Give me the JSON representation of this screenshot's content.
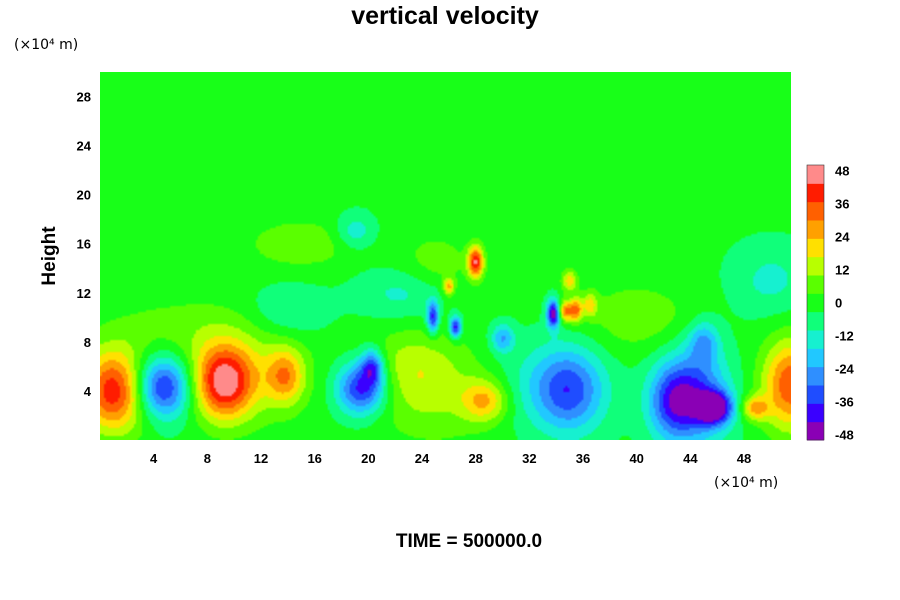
{
  "chart_data": {
    "type": "heatmap",
    "title": "vertical velocity",
    "xlabel": "",
    "ylabel": "Height",
    "x_unit": "(×10⁴ m)",
    "y_unit": "(×10⁴ m)",
    "xlim": [
      0,
      51.5
    ],
    "ylim": [
      0,
      30
    ],
    "x_ticks": [
      4,
      8,
      12,
      16,
      20,
      24,
      28,
      32,
      36,
      40,
      44,
      48
    ],
    "y_ticks": [
      4,
      8,
      12,
      16,
      20,
      24,
      28
    ],
    "colorbar": {
      "ticks": [
        48,
        36,
        24,
        12,
        0,
        -12,
        -24,
        -36,
        -48
      ],
      "range": [
        -50,
        50
      ],
      "colors": [
        "#8a00b5",
        "#3a00ff",
        "#1f4dff",
        "#2f8fff",
        "#21c8ff",
        "#16f0d0",
        "#10ff7a",
        "#18ff18",
        "#5aff00",
        "#b8ff00",
        "#ffe000",
        "#ffa000",
        "#ff6000",
        "#ff1c00",
        "#ff8a8a"
      ]
    },
    "background_value": -2,
    "features": [
      {
        "x": 1.2,
        "y": 4.0,
        "sx": 1.8,
        "sy": 2.3,
        "value": 46
      },
      {
        "x": 4.5,
        "y": 4.3,
        "sx": 1.6,
        "sy": 1.8,
        "value": -42
      },
      {
        "x": 9.2,
        "y": 4.7,
        "sx": 1.6,
        "sy": 2.1,
        "value": 46
      },
      {
        "x": 13.8,
        "y": 5.2,
        "sx": 1.0,
        "sy": 1.6,
        "value": 26
      },
      {
        "x": 11.5,
        "y": 5.5,
        "sx": 3.0,
        "sy": 3.0,
        "value": 10
      },
      {
        "x": 19.5,
        "y": 4.2,
        "sx": 1.3,
        "sy": 1.5,
        "value": -40
      },
      {
        "x": 20.3,
        "y": 6.0,
        "sx": 0.6,
        "sy": 1.0,
        "value": -30
      },
      {
        "x": 25.0,
        "y": 4.2,
        "sx": 3.5,
        "sy": 3.0,
        "value": 14
      },
      {
        "x": 28.7,
        "y": 3.2,
        "sx": 1.2,
        "sy": 1.2,
        "value": 24
      },
      {
        "x": 23.0,
        "y": 6.2,
        "sx": 2.0,
        "sy": 2.0,
        "value": 8
      },
      {
        "x": 35.0,
        "y": 4.0,
        "sx": 1.8,
        "sy": 2.4,
        "value": -28
      },
      {
        "x": 32.5,
        "y": 4.5,
        "sx": 3.0,
        "sy": 2.5,
        "value": -10
      },
      {
        "x": 44.2,
        "y": 3.5,
        "sx": 1.8,
        "sy": 2.6,
        "value": -36
      },
      {
        "x": 45.8,
        "y": 2.6,
        "sx": 0.9,
        "sy": 0.9,
        "value": -44
      },
      {
        "x": 42.5,
        "y": 3.0,
        "sx": 1.2,
        "sy": 2.0,
        "value": -20
      },
      {
        "x": 45.0,
        "y": 8.0,
        "sx": 0.8,
        "sy": 1.2,
        "value": -20
      },
      {
        "x": 48.8,
        "y": 2.6,
        "sx": 0.7,
        "sy": 0.7,
        "value": 26
      },
      {
        "x": 51.5,
        "y": 4.5,
        "sx": 1.5,
        "sy": 2.6,
        "value": 38
      },
      {
        "x": 28.0,
        "y": 14.5,
        "sx": 0.4,
        "sy": 0.9,
        "value": 44
      },
      {
        "x": 25.0,
        "y": 14.0,
        "sx": 2.0,
        "sy": 2.0,
        "value": 10
      },
      {
        "x": 33.8,
        "y": 10.3,
        "sx": 0.35,
        "sy": 0.8,
        "value": -48
      },
      {
        "x": 34.7,
        "y": 10.5,
        "sx": 0.4,
        "sy": 0.6,
        "value": 34
      },
      {
        "x": 35.5,
        "y": 10.6,
        "sx": 0.3,
        "sy": 0.7,
        "value": 30
      },
      {
        "x": 36.5,
        "y": 11.0,
        "sx": 0.4,
        "sy": 0.7,
        "value": 20
      },
      {
        "x": 35.0,
        "y": 13.0,
        "sx": 0.4,
        "sy": 0.6,
        "value": 22
      },
      {
        "x": 24.8,
        "y": 10.0,
        "sx": 0.3,
        "sy": 0.9,
        "value": -36
      },
      {
        "x": 26.5,
        "y": 9.2,
        "sx": 0.3,
        "sy": 0.6,
        "value": -40
      },
      {
        "x": 30.0,
        "y": 8.3,
        "sx": 0.6,
        "sy": 0.8,
        "value": -22
      },
      {
        "x": 26.0,
        "y": 12.5,
        "sx": 0.3,
        "sy": 0.5,
        "value": 26
      },
      {
        "x": 23.0,
        "y": 12.0,
        "sx": 2.5,
        "sy": 1.5,
        "value": -12
      },
      {
        "x": 19.0,
        "y": 17.0,
        "sx": 1.0,
        "sy": 1.0,
        "value": -14
      },
      {
        "x": 15.0,
        "y": 16.0,
        "sx": 3.0,
        "sy": 1.5,
        "value": 10
      },
      {
        "x": 6.0,
        "y": 9.0,
        "sx": 4.0,
        "sy": 2.0,
        "value": 8
      },
      {
        "x": 40.0,
        "y": 10.0,
        "sx": 3.0,
        "sy": 2.0,
        "value": 10
      },
      {
        "x": 50.0,
        "y": 13.0,
        "sx": 2.0,
        "sy": 2.0,
        "value": -10
      },
      {
        "x": 14.0,
        "y": 10.5,
        "sx": 2.0,
        "sy": 1.5,
        "value": -10
      }
    ]
  },
  "time_label": "TIME = 500000.0"
}
